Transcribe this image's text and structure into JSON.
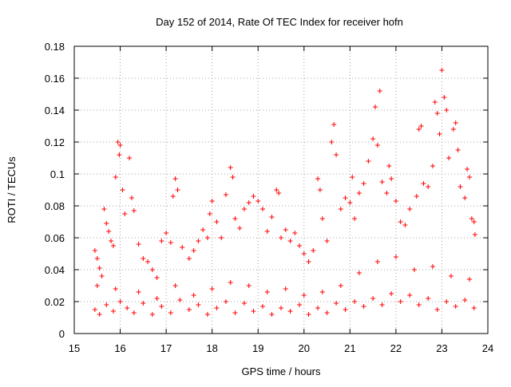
{
  "chart_data": {
    "type": "scatter",
    "title": "Day 152 of 2014, Rate Of TEC Index for receiver hofn",
    "xlabel": "GPS time / hours",
    "ylabel": "ROTI / TECUs",
    "xlim": [
      15,
      24
    ],
    "ylim": [
      0,
      0.18
    ],
    "x_ticks": [
      "15",
      "16",
      "17",
      "18",
      "19",
      "20",
      "21",
      "22",
      "23",
      "24"
    ],
    "y_ticks": [
      "0",
      "0.02",
      "0.04",
      "0.06",
      "0.08",
      "0.1",
      "0.12",
      "0.14",
      "0.16",
      "0.18"
    ],
    "grid": true,
    "marker": "+",
    "color": "#ff0000",
    "series": [
      {
        "name": "ROTI",
        "points": [
          [
            15.45,
            0.052
          ],
          [
            15.5,
            0.047
          ],
          [
            15.55,
            0.041
          ],
          [
            15.6,
            0.036
          ],
          [
            15.65,
            0.078
          ],
          [
            15.7,
            0.069
          ],
          [
            15.75,
            0.064
          ],
          [
            15.8,
            0.058
          ],
          [
            15.85,
            0.055
          ],
          [
            15.9,
            0.098
          ],
          [
            15.95,
            0.12
          ],
          [
            15.98,
            0.112
          ],
          [
            16.0,
            0.118
          ],
          [
            16.05,
            0.09
          ],
          [
            16.1,
            0.075
          ],
          [
            16.2,
            0.11
          ],
          [
            16.25,
            0.085
          ],
          [
            16.3,
            0.077
          ],
          [
            16.4,
            0.056
          ],
          [
            16.5,
            0.047
          ],
          [
            16.6,
            0.045
          ],
          [
            16.7,
            0.04
          ],
          [
            16.8,
            0.035
          ],
          [
            16.9,
            0.058
          ],
          [
            17.0,
            0.063
          ],
          [
            17.1,
            0.057
          ],
          [
            17.15,
            0.086
          ],
          [
            17.2,
            0.097
          ],
          [
            17.25,
            0.09
          ],
          [
            17.35,
            0.054
          ],
          [
            17.5,
            0.047
          ],
          [
            17.6,
            0.052
          ],
          [
            17.7,
            0.058
          ],
          [
            17.8,
            0.065
          ],
          [
            17.9,
            0.06
          ],
          [
            17.95,
            0.075
          ],
          [
            18.0,
            0.083
          ],
          [
            18.1,
            0.07
          ],
          [
            18.2,
            0.06
          ],
          [
            18.3,
            0.087
          ],
          [
            18.4,
            0.104
          ],
          [
            18.45,
            0.098
          ],
          [
            18.5,
            0.072
          ],
          [
            18.6,
            0.066
          ],
          [
            18.7,
            0.078
          ],
          [
            18.8,
            0.082
          ],
          [
            18.9,
            0.086
          ],
          [
            19.0,
            0.083
          ],
          [
            19.1,
            0.078
          ],
          [
            19.2,
            0.064
          ],
          [
            19.3,
            0.073
          ],
          [
            19.4,
            0.09
          ],
          [
            19.45,
            0.088
          ],
          [
            19.5,
            0.06
          ],
          [
            19.6,
            0.065
          ],
          [
            19.7,
            0.058
          ],
          [
            19.8,
            0.063
          ],
          [
            19.9,
            0.055
          ],
          [
            20.0,
            0.05
          ],
          [
            20.1,
            0.045
          ],
          [
            20.2,
            0.052
          ],
          [
            20.3,
            0.097
          ],
          [
            20.35,
            0.09
          ],
          [
            20.4,
            0.072
          ],
          [
            20.5,
            0.058
          ],
          [
            20.6,
            0.12
          ],
          [
            20.65,
            0.131
          ],
          [
            20.7,
            0.112
          ],
          [
            20.8,
            0.078
          ],
          [
            20.9,
            0.085
          ],
          [
            21.0,
            0.082
          ],
          [
            21.05,
            0.098
          ],
          [
            21.1,
            0.072
          ],
          [
            21.2,
            0.088
          ],
          [
            21.3,
            0.094
          ],
          [
            21.4,
            0.108
          ],
          [
            21.5,
            0.122
          ],
          [
            21.55,
            0.142
          ],
          [
            21.6,
            0.118
          ],
          [
            21.65,
            0.152
          ],
          [
            21.7,
            0.095
          ],
          [
            21.8,
            0.088
          ],
          [
            21.85,
            0.105
          ],
          [
            21.9,
            0.097
          ],
          [
            22.0,
            0.083
          ],
          [
            22.1,
            0.07
          ],
          [
            22.2,
            0.068
          ],
          [
            22.3,
            0.078
          ],
          [
            22.45,
            0.086
          ],
          [
            22.5,
            0.128
          ],
          [
            22.55,
            0.13
          ],
          [
            22.6,
            0.094
          ],
          [
            22.7,
            0.092
          ],
          [
            22.8,
            0.105
          ],
          [
            22.85,
            0.145
          ],
          [
            22.9,
            0.138
          ],
          [
            22.95,
            0.125
          ],
          [
            23.0,
            0.165
          ],
          [
            23.05,
            0.148
          ],
          [
            23.1,
            0.14
          ],
          [
            23.15,
            0.11
          ],
          [
            23.25,
            0.128
          ],
          [
            23.3,
            0.132
          ],
          [
            23.35,
            0.115
          ],
          [
            23.4,
            0.092
          ],
          [
            23.5,
            0.085
          ],
          [
            23.55,
            0.103
          ],
          [
            23.6,
            0.098
          ],
          [
            23.65,
            0.072
          ],
          [
            23.7,
            0.07
          ],
          [
            23.72,
            0.062
          ],
          [
            15.45,
            0.015
          ],
          [
            15.55,
            0.012
          ],
          [
            15.7,
            0.018
          ],
          [
            15.85,
            0.014
          ],
          [
            16.0,
            0.02
          ],
          [
            16.15,
            0.016
          ],
          [
            16.3,
            0.013
          ],
          [
            16.5,
            0.019
          ],
          [
            16.7,
            0.012
          ],
          [
            16.9,
            0.017
          ],
          [
            17.1,
            0.013
          ],
          [
            17.3,
            0.021
          ],
          [
            17.5,
            0.015
          ],
          [
            17.7,
            0.018
          ],
          [
            17.9,
            0.012
          ],
          [
            18.1,
            0.016
          ],
          [
            18.3,
            0.02
          ],
          [
            18.5,
            0.013
          ],
          [
            18.7,
            0.019
          ],
          [
            18.9,
            0.014
          ],
          [
            19.1,
            0.017
          ],
          [
            19.3,
            0.012
          ],
          [
            19.5,
            0.016
          ],
          [
            19.7,
            0.014
          ],
          [
            19.9,
            0.018
          ],
          [
            20.1,
            0.012
          ],
          [
            20.3,
            0.016
          ],
          [
            20.5,
            0.013
          ],
          [
            20.7,
            0.019
          ],
          [
            20.9,
            0.015
          ],
          [
            21.1,
            0.02
          ],
          [
            21.3,
            0.017
          ],
          [
            21.5,
            0.022
          ],
          [
            21.7,
            0.018
          ],
          [
            21.9,
            0.025
          ],
          [
            22.1,
            0.02
          ],
          [
            22.3,
            0.024
          ],
          [
            22.5,
            0.018
          ],
          [
            22.7,
            0.022
          ],
          [
            22.9,
            0.015
          ],
          [
            23.1,
            0.02
          ],
          [
            23.3,
            0.017
          ],
          [
            23.5,
            0.021
          ],
          [
            23.7,
            0.016
          ],
          [
            15.5,
            0.03
          ],
          [
            15.9,
            0.028
          ],
          [
            16.4,
            0.026
          ],
          [
            16.8,
            0.022
          ],
          [
            17.2,
            0.03
          ],
          [
            17.6,
            0.024
          ],
          [
            18.0,
            0.028
          ],
          [
            18.4,
            0.032
          ],
          [
            18.8,
            0.03
          ],
          [
            19.2,
            0.026
          ],
          [
            19.6,
            0.028
          ],
          [
            20.0,
            0.024
          ],
          [
            20.4,
            0.026
          ],
          [
            20.8,
            0.03
          ],
          [
            21.2,
            0.038
          ],
          [
            21.6,
            0.045
          ],
          [
            22.0,
            0.048
          ],
          [
            22.4,
            0.04
          ],
          [
            22.8,
            0.042
          ],
          [
            23.2,
            0.036
          ],
          [
            23.6,
            0.034
          ]
        ]
      }
    ]
  }
}
